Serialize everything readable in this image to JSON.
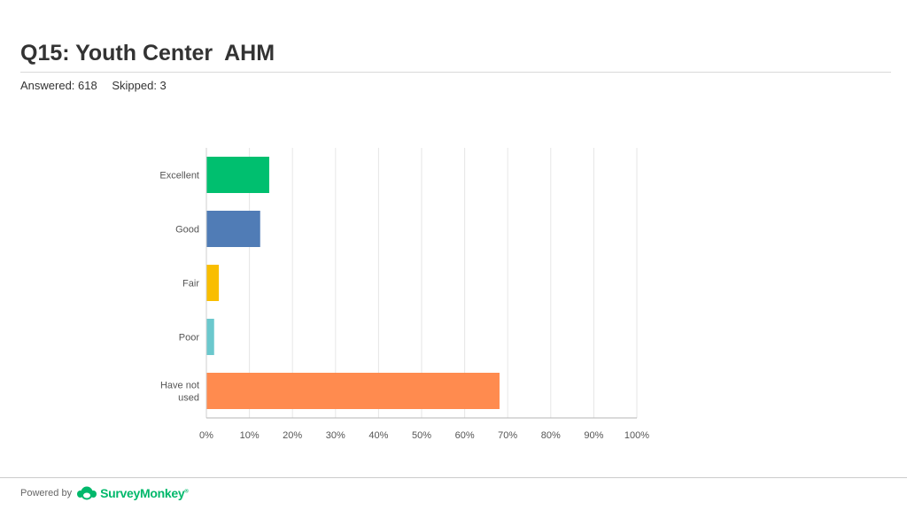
{
  "header": {
    "title": "Q15: Youth Center  AHM",
    "answered": "Answered: 618",
    "skipped": "Skipped: 3"
  },
  "chart_data": {
    "type": "bar",
    "orientation": "horizontal",
    "categories": [
      [
        "Excellent"
      ],
      [
        "Good"
      ],
      [
        "Fair"
      ],
      [
        "Poor"
      ],
      [
        "Have not",
        "used"
      ]
    ],
    "values": [
      14.6,
      12.5,
      2.9,
      1.8,
      68.1
    ],
    "colors": [
      "#00bf6f",
      "#507cb6",
      "#f9be00",
      "#6bc8cd",
      "#ff8b4f"
    ],
    "x_ticks": [
      "0%",
      "10%",
      "20%",
      "30%",
      "40%",
      "50%",
      "60%",
      "70%",
      "80%",
      "90%",
      "100%"
    ],
    "xlim": [
      0,
      100
    ],
    "unit": "percent",
    "grid": true
  },
  "footer": {
    "powered_by": "Powered by",
    "brand": "SurveyMonkey",
    "trademark": "®",
    "logo_icon": "surveymonkey-logo-icon"
  }
}
